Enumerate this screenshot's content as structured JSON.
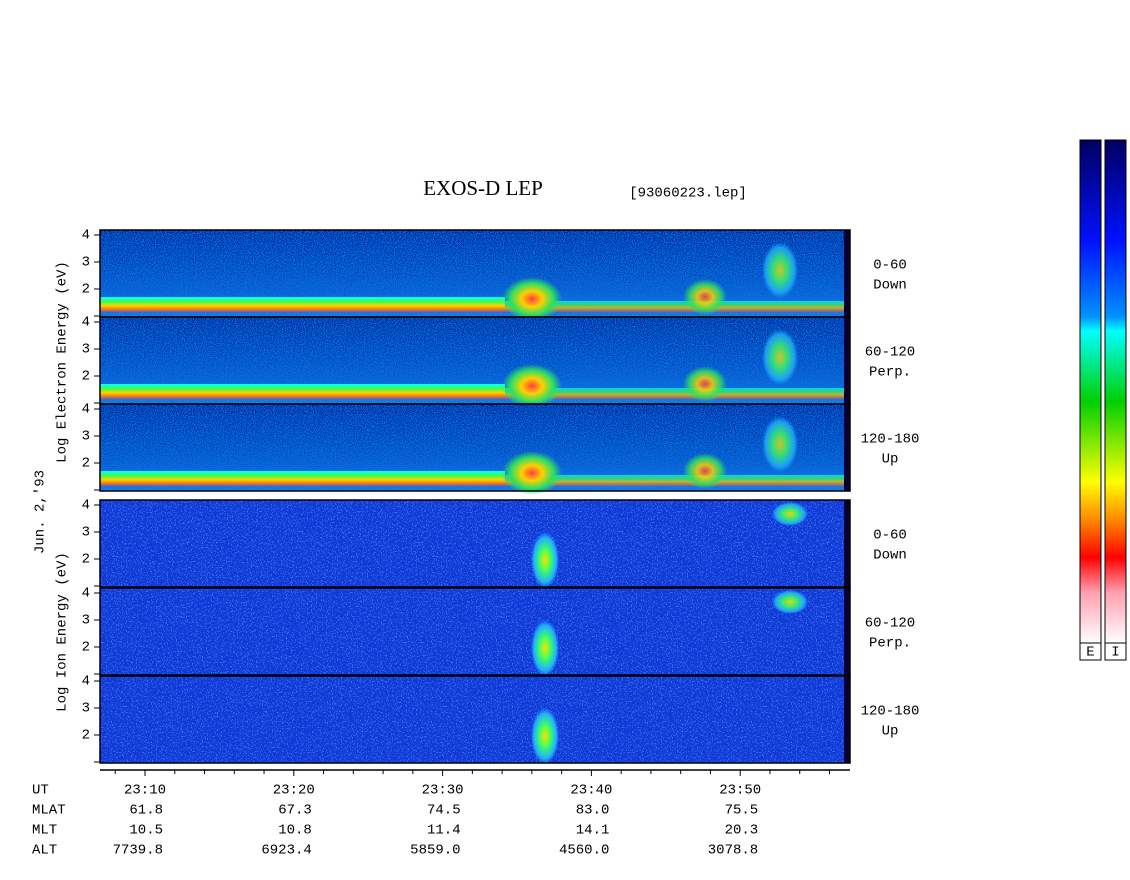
{
  "header": {
    "title": "EXOS-D LEP",
    "file": "[93060223.lep]"
  },
  "date": "Jun. 2,'93",
  "yticks": [
    2,
    3,
    4
  ],
  "electron": {
    "axis_label": "Log Electron Energy (eV)",
    "panels": [
      {
        "label": "0-60",
        "sub": "Down"
      },
      {
        "label": "60-120",
        "sub": "Perp."
      },
      {
        "label": "120-180",
        "sub": "Up"
      }
    ]
  },
  "ion": {
    "axis_label": "Log Ion Energy (eV)",
    "panels": [
      {
        "label": "0-60",
        "sub": "Down"
      },
      {
        "label": "60-120",
        "sub": "Perp."
      },
      {
        "label": "120-180",
        "sub": "Up"
      }
    ]
  },
  "orbit": {
    "rows": [
      [
        "UT",
        "23:10",
        "23:20",
        "23:30",
        "23:40",
        "23:50"
      ],
      [
        "MLAT",
        "61.8",
        "67.3",
        "74.5",
        "83.0",
        "75.5"
      ],
      [
        "MLT",
        "10.5",
        "10.8",
        "11.4",
        "14.1",
        "20.3"
      ],
      [
        "ALT",
        "7739.8",
        "6923.4",
        "5859.0",
        "4560.0",
        "3078.8"
      ]
    ]
  },
  "colorbar": {
    "labels": [
      "E",
      "I"
    ]
  }
}
